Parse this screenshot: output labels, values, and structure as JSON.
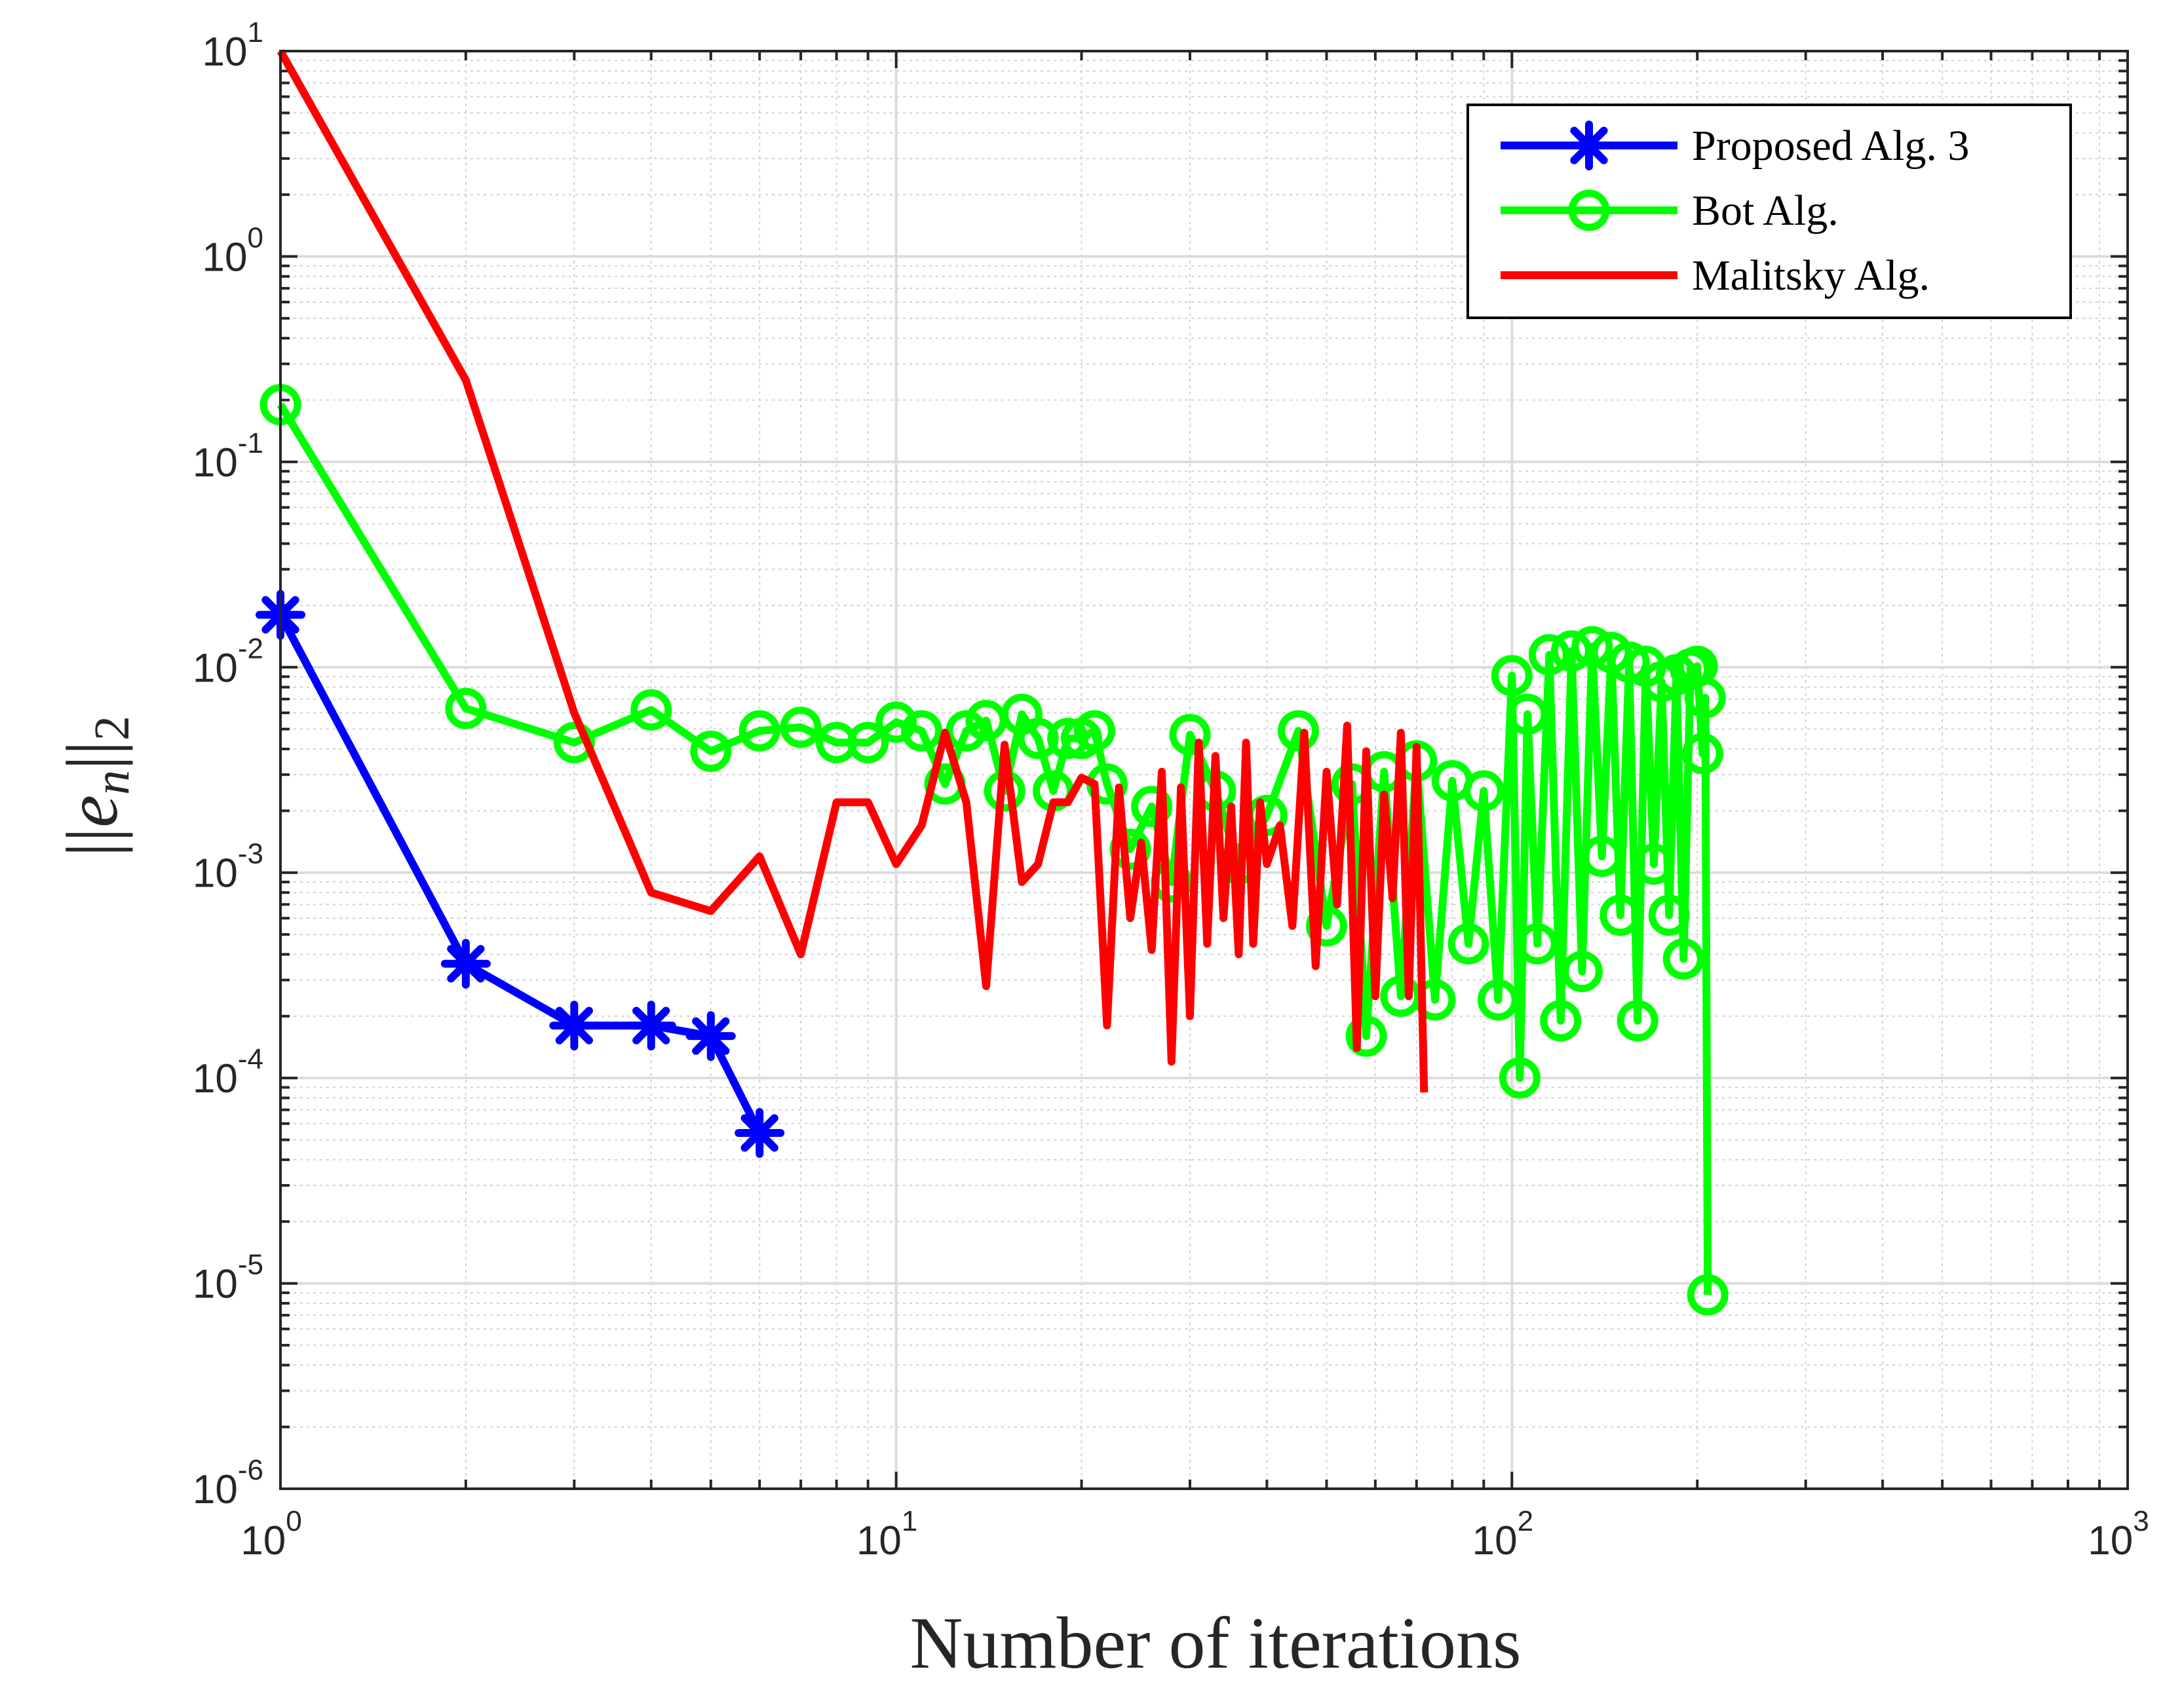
{
  "chart_data": {
    "type": "line",
    "xscale": "log",
    "yscale": "log",
    "xlim": [
      1,
      1000
    ],
    "ylim": [
      1e-06,
      10
    ],
    "xlabel": "Number of iterations",
    "ylabel": "||e_n||_2",
    "ylabel_parts": {
      "outer_left": "||",
      "var": "e",
      "sub": "n",
      "outer_right": "||",
      "norm": "2"
    },
    "grid": true,
    "legend_position": "top-right",
    "x_ticks": [
      {
        "base": "10",
        "exp": "0",
        "value": 1
      },
      {
        "base": "10",
        "exp": "1",
        "value": 10
      },
      {
        "base": "10",
        "exp": "2",
        "value": 100
      },
      {
        "base": "10",
        "exp": "3",
        "value": 1000
      }
    ],
    "y_ticks": [
      {
        "base": "10",
        "exp": "1",
        "value": 10
      },
      {
        "base": "10",
        "exp": "0",
        "value": 1
      },
      {
        "base": "10",
        "exp": "-1",
        "value": 0.1
      },
      {
        "base": "10",
        "exp": "-2",
        "value": 0.01
      },
      {
        "base": "10",
        "exp": "-3",
        "value": 0.001
      },
      {
        "base": "10",
        "exp": "-4",
        "value": 0.0001
      },
      {
        "base": "10",
        "exp": "-5",
        "value": 1e-05
      },
      {
        "base": "10",
        "exp": "-6",
        "value": 1e-06
      }
    ],
    "series": [
      {
        "name": "Proposed Alg. 3",
        "color": "#0000ff",
        "marker": "asterisk",
        "x": [
          1,
          2,
          3,
          4,
          5,
          6
        ],
        "y": [
          0.018,
          0.00036,
          0.00018,
          0.00018,
          0.00016,
          5.4e-05
        ]
      },
      {
        "name": "Bot Alg.",
        "color": "#00ff00",
        "marker": "circle",
        "x": [
          1,
          2,
          3,
          4,
          5,
          6,
          7,
          8,
          9,
          10,
          11,
          12,
          13,
          14,
          15,
          16,
          17,
          18,
          19,
          20,
          21,
          22,
          24,
          26,
          28,
          30,
          33,
          36,
          40,
          45,
          50,
          55,
          58,
          62,
          66,
          70,
          75,
          80,
          85,
          90,
          95,
          100,
          103,
          106,
          110,
          115,
          120,
          125,
          130,
          135,
          140,
          145,
          150,
          155,
          160,
          165,
          170,
          175,
          180,
          185,
          190,
          195,
          200,
          204,
          206,
          208
        ],
        "y": [
          0.19,
          0.0063,
          0.0043,
          0.0062,
          0.0039,
          0.0049,
          0.0051,
          0.0043,
          0.0043,
          0.0054,
          0.0049,
          0.0027,
          0.0049,
          0.0055,
          0.0025,
          0.0059,
          0.0045,
          0.0025,
          0.0045,
          0.0045,
          0.0049,
          0.0027,
          0.0013,
          0.0021,
          0.0009,
          0.0047,
          0.0025,
          0.0011,
          0.0019,
          0.0049,
          0.00055,
          0.0027,
          0.00016,
          0.0031,
          0.00025,
          0.0035,
          0.00024,
          0.0028,
          0.00045,
          0.0025,
          0.00024,
          0.0091,
          0.0001,
          0.0059,
          0.00045,
          0.0115,
          0.00019,
          0.012,
          0.00033,
          0.0126,
          0.0012,
          0.0118,
          0.00062,
          0.0106,
          0.00019,
          0.0101,
          0.0011,
          0.0085,
          0.00062,
          0.0092,
          0.00038,
          0.0098,
          0.0101,
          0.0038,
          0.0071,
          8.8e-06
        ]
      },
      {
        "name": "Malitsky Alg.",
        "color": "#ff0000",
        "marker": "none",
        "x": [
          1,
          2,
          3,
          4,
          5,
          6,
          7,
          8,
          9,
          10,
          11,
          12,
          13,
          14,
          15,
          16,
          17,
          18,
          19,
          20,
          21,
          22,
          23,
          24,
          25,
          26,
          27,
          28,
          29,
          30,
          31,
          32,
          33,
          34,
          35,
          36,
          37,
          38,
          39,
          40,
          42,
          44,
          46,
          48,
          50,
          52,
          54,
          56,
          58,
          60,
          62,
          64,
          66,
          68,
          70,
          72
        ],
        "y": [
          10,
          0.25,
          0.006,
          0.0008,
          0.00065,
          0.0012,
          0.0004,
          0.0022,
          0.0022,
          0.0011,
          0.0017,
          0.0048,
          0.0022,
          0.00028,
          0.0042,
          0.0009,
          0.0011,
          0.0022,
          0.0022,
          0.0029,
          0.0027,
          0.00018,
          0.0026,
          0.0006,
          0.0014,
          0.00042,
          0.0031,
          0.00012,
          0.0026,
          0.0002,
          0.0043,
          0.00045,
          0.0037,
          0.0006,
          0.0021,
          0.0004,
          0.0043,
          0.00045,
          0.0022,
          0.0011,
          0.0017,
          0.00055,
          0.0048,
          0.00035,
          0.0031,
          0.0007,
          0.0052,
          0.00014,
          0.0039,
          0.00025,
          0.0024,
          0.00075,
          0.0048,
          0.00025,
          0.0041,
          8.5e-05
        ]
      }
    ]
  }
}
